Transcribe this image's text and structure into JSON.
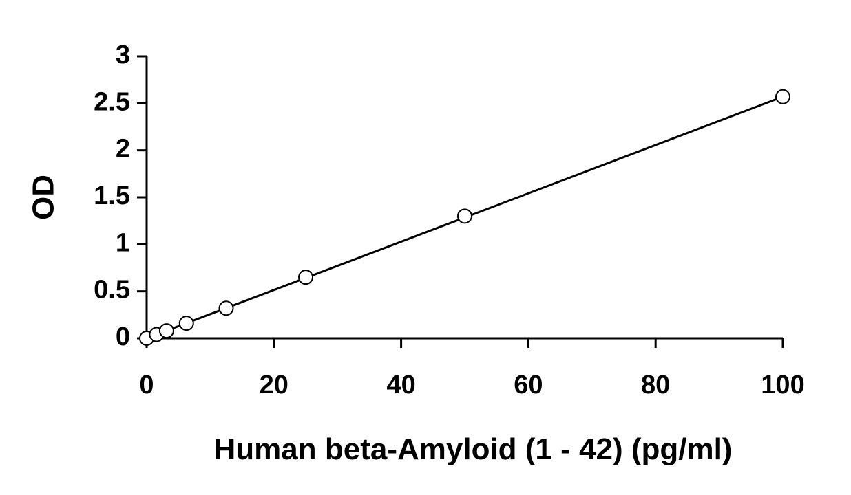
{
  "chart_data": {
    "type": "scatter",
    "title": "",
    "xlabel": "Human beta-Amyloid (1 - 42) (pg/ml)",
    "ylabel": "OD",
    "xlim": [
      0,
      100
    ],
    "ylim": [
      0,
      3
    ],
    "x_ticks": [
      0,
      20,
      40,
      60,
      80,
      100
    ],
    "x_tick_labels": [
      "0",
      "20",
      "40",
      "60",
      "80",
      "100"
    ],
    "y_ticks": [
      0,
      0.5,
      1,
      1.5,
      2,
      2.5,
      3
    ],
    "y_tick_labels": [
      "0",
      "0.5",
      "1",
      "1.5",
      "2",
      "2.5",
      "3"
    ],
    "grid": false,
    "legend": "none",
    "series": [
      {
        "x": [
          0,
          1.56,
          3.13,
          6.25,
          12.5,
          25,
          50,
          100
        ],
        "y": [
          0.0,
          0.04,
          0.08,
          0.16,
          0.32,
          0.65,
          1.3,
          2.57
        ],
        "marker": "open-circle"
      }
    ],
    "trendline": {
      "type": "linear",
      "x": [
        0,
        100
      ],
      "y": [
        0.0,
        2.57
      ]
    }
  }
}
